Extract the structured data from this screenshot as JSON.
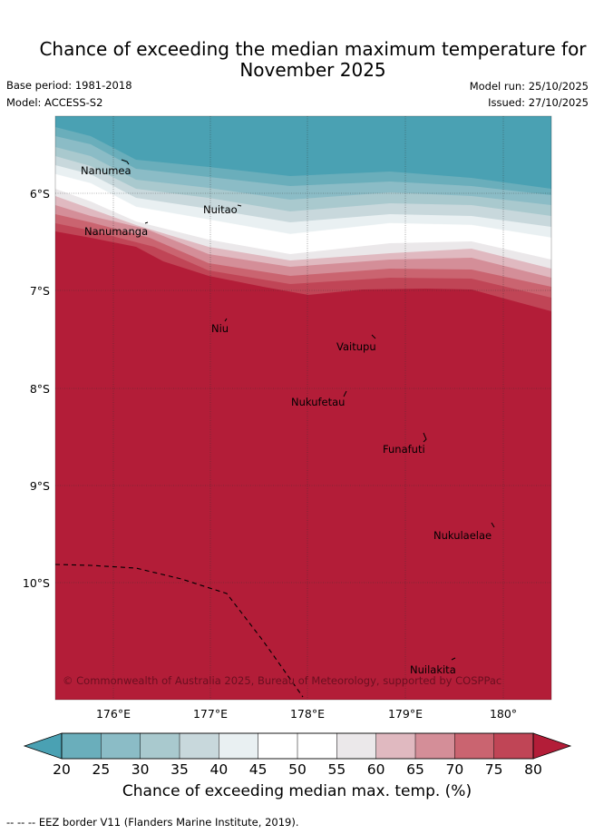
{
  "title": {
    "line1": "Chance of exceeding the median maximum temperature for",
    "line2": "November 2025"
  },
  "meta": {
    "base_period": "Base period: 1981-2018",
    "model": "Model: ACCESS-S2",
    "model_run": "Model run: 25/10/2025",
    "issued": "Issued: 27/10/2025"
  },
  "map": {
    "lat_labels": [
      "6°S",
      "7°S",
      "8°S",
      "9°S",
      "10°S"
    ],
    "lon_labels": [
      "176°E",
      "177°E",
      "178°E",
      "179°E",
      "180°"
    ],
    "places": [
      "Nanumea",
      "Nuitao",
      "Nanumanga",
      "Niu",
      "Vaitupu",
      "Nukufetau",
      "Funafuti",
      "Nukulaelae",
      "Nuilakita"
    ],
    "copyright": "© Commonwealth of Australia 2025, Bureau of Meteorology, supported by COSPPac"
  },
  "colorbar": {
    "ticks": [
      "20",
      "25",
      "30",
      "35",
      "40",
      "45",
      "50",
      "55",
      "60",
      "65",
      "70",
      "75",
      "80"
    ],
    "colors": [
      "#6aaebb",
      "#8bbcc6",
      "#a9c9ce",
      "#c8d8dc",
      "#e9f0f2",
      "#ffffff",
      "#ffffff",
      "#ebe8ea",
      "#e0b9c0",
      "#d48e98",
      "#ca6470",
      "#c04556"
    ],
    "under_color": "#4aa1b3",
    "over_color": "#b31d38",
    "label": "Chance of exceeding median max. temp. (%)"
  },
  "footer": "-- -- -- EEZ border V11 (Flanders Marine Institute, 2019)."
}
